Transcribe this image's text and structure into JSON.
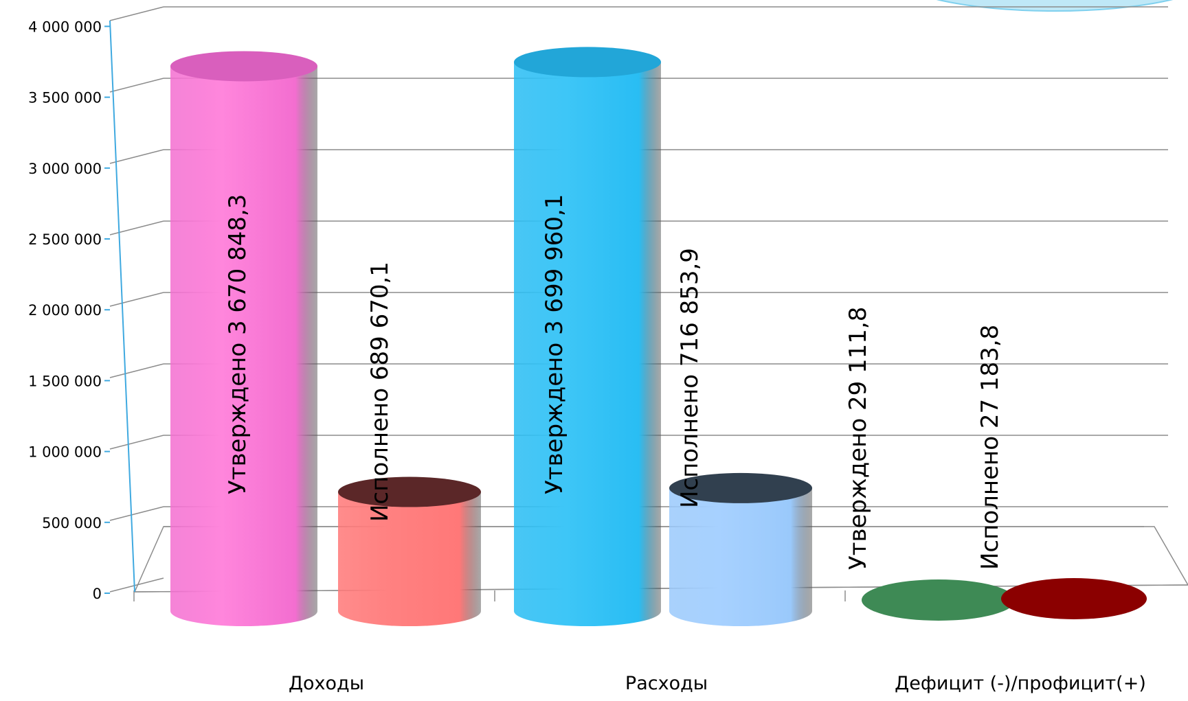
{
  "chart_data": {
    "type": "bar",
    "style": "3d-cylinder",
    "categories": [
      "Доходы",
      "Расходы",
      "Дефицит (-)/профицит(+)"
    ],
    "bars": [
      {
        "category": "Доходы",
        "value": 3670848.3,
        "label": "Утверждено 3 670 848,3",
        "top_color": "#ff86dc",
        "side_color": "#f36ed0",
        "cap_color": "#d95fbd"
      },
      {
        "category": "Доходы",
        "value": 689670.1,
        "label": "Исполнено 689 670,1",
        "top_color": "#ff8181",
        "side_color": "#ff7878",
        "cap_color": "#5b2728"
      },
      {
        "category": "Расходы",
        "value": 3699960.1,
        "label": "Утверждено 3 699 960,1",
        "top_color": "#3ec6f7",
        "side_color": "#29bdf3",
        "cap_color": "#22a6d8"
      },
      {
        "category": "Расходы",
        "value": 716853.9,
        "label": "Исполнено 716 853,9",
        "top_color": "#a7d1ff",
        "side_color": "#9ac9fb",
        "cap_color": "#31404f"
      },
      {
        "category": "Дефицит (-)/профицит(+)",
        "value": 29111.8,
        "label": "Утверждено 29 111,8",
        "top_color": "#3e8a55",
        "side_color": "#3e8a55",
        "cap_color": "#3e8a55"
      },
      {
        "category": "Дефицит (-)/профицит(+)",
        "value": 27183.8,
        "label": "Исполнено 27 183,8",
        "top_color": "#8b0000",
        "side_color": "#8b0000",
        "cap_color": "#8b0000"
      }
    ],
    "ylim": [
      0,
      4000000
    ],
    "ytick_values": [
      0,
      500000,
      1000000,
      1500000,
      2000000,
      2500000,
      3000000,
      3500000,
      4000000
    ],
    "ytick_labels": [
      "0",
      "500 000",
      "1 000 000",
      "1 500 000",
      "2 000 000",
      "2 500 000",
      "3 000 000",
      "3 500 000",
      "4 000 000"
    ],
    "grid": true,
    "axis_color": "#3fa9e0",
    "grid_color": "#8c8c8c"
  }
}
